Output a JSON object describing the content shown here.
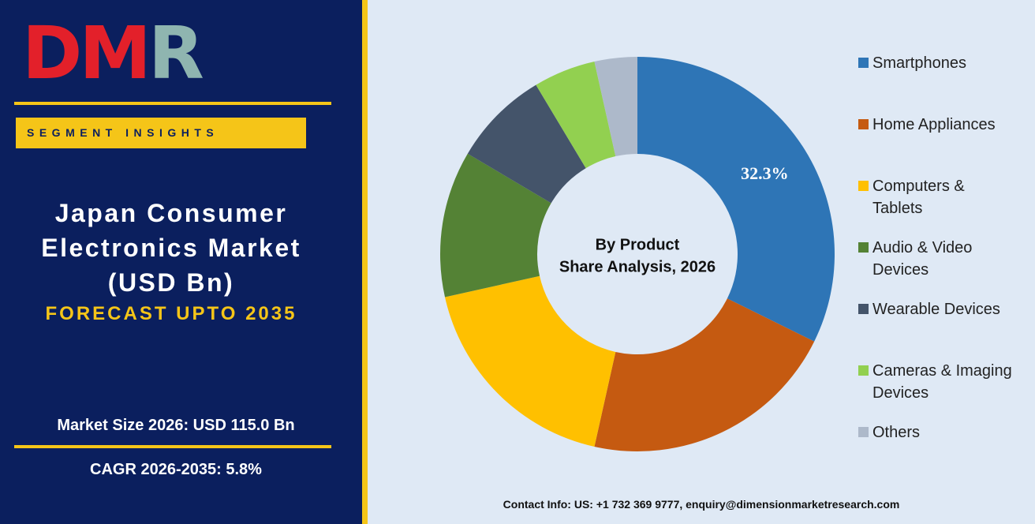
{
  "header": {
    "logo": [
      "D",
      "M",
      "R"
    ],
    "tag": "SEGMENT INSIGHTS",
    "title": [
      "Japan Consumer",
      "Electronics Market",
      "(USD Bn)"
    ],
    "subtitle": "FORECAST UPTO 2035",
    "market_size": "Market Size 2026: USD 115.0 Bn",
    "cagr": "CAGR 2026-2035: 5.8%"
  },
  "chart_data": {
    "type": "donut",
    "center_label": [
      "By Product",
      "Share Analysis, 2026"
    ],
    "categories": [
      "Smartphones",
      "Home Appliances",
      "Computers & Tablets",
      "Audio & Video Devices",
      "Wearable Devices",
      "Cameras & Imaging Devices",
      "Others"
    ],
    "values": [
      32.3,
      21.2,
      18.0,
      12.0,
      7.9,
      5.1,
      3.5
    ],
    "value_labels": [
      "32.3%",
      null,
      null,
      null,
      null,
      null,
      null
    ],
    "colors": [
      "#2e75b6",
      "#c55a11",
      "#ffc000",
      "#548235",
      "#44546a",
      "#92d050",
      "#adb9ca"
    ],
    "legend": "right"
  },
  "footer": {
    "contact": "Contact Info: US: +1 732 369 9777, enquiry@dimensionmarketresearch.com"
  }
}
